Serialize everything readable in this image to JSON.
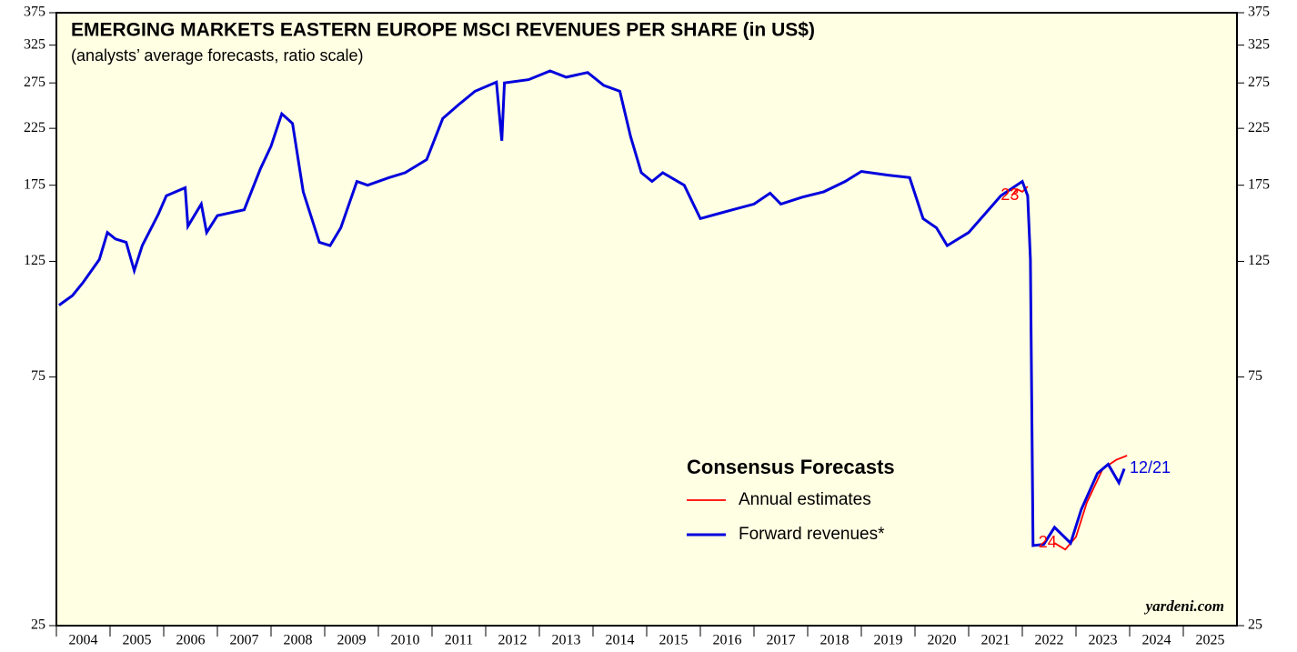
{
  "chart_data": {
    "type": "line",
    "title": "EMERGING MARKETS EASTERN EUROPE MSCI REVENUES PER SHARE (in US$)",
    "subtitle": "(analysts’ average forecasts, ratio scale)",
    "legend_title": "Consensus Forecasts",
    "log_scale": true,
    "ylim": [
      25,
      375
    ],
    "yticks": [
      25,
      75,
      125,
      175,
      225,
      275,
      325,
      375
    ],
    "xlim": [
      2004,
      2026
    ],
    "xticks": [
      2004,
      2005,
      2006,
      2007,
      2008,
      2009,
      2010,
      2011,
      2012,
      2013,
      2014,
      2015,
      2016,
      2017,
      2018,
      2019,
      2020,
      2021,
      2022,
      2023,
      2024,
      2025
    ],
    "series": [
      {
        "name": "Annual estimates",
        "color": "#ff0000",
        "x": [
          2021.8,
          2021.9,
          2022.0,
          2022.1,
          null,
          2022.6,
          2022.8,
          2023.0,
          2023.2,
          2023.5,
          2023.75,
          2023.95
        ],
        "values": [
          167,
          172,
          170,
          174,
          null,
          36,
          35,
          37,
          43,
          50,
          52,
          53
        ]
      },
      {
        "name": "Forward revenues*",
        "color": "#0000dd",
        "x": [
          2004.05,
          2004.3,
          2004.5,
          2004.8,
          2004.95,
          2005.1,
          2005.3,
          2005.45,
          2005.6,
          2005.9,
          2006.05,
          2006.4,
          2006.45,
          2006.7,
          2006.8,
          2007.0,
          2007.5,
          2007.8,
          2008.0,
          2008.2,
          2008.4,
          2008.6,
          2008.9,
          2009.1,
          2009.3,
          2009.6,
          2009.8,
          2010.2,
          2010.5,
          2010.9,
          2011.2,
          2011.5,
          2011.8,
          2012.2,
          2012.3,
          2012.35,
          2012.8,
          2013.2,
          2013.5,
          2013.9,
          2014.2,
          2014.5,
          2014.7,
          2014.9,
          2015.1,
          2015.3,
          2015.7,
          2016.0,
          2016.3,
          2016.6,
          2017.0,
          2017.3,
          2017.5,
          2017.9,
          2018.3,
          2018.7,
          2019.0,
          2019.5,
          2019.9,
          2020.15,
          2020.4,
          2020.6,
          2021.0,
          2021.3,
          2021.6,
          2022.0,
          2022.1,
          2022.15,
          2022.2,
          2022.4,
          2022.6,
          2022.9,
          2023.1,
          2023.4,
          2023.6,
          2023.8,
          2023.9
        ],
        "values": [
          103,
          107.5,
          114,
          126,
          142,
          138,
          136,
          120,
          134,
          154,
          167,
          173,
          146,
          161,
          142,
          153,
          157,
          188,
          208,
          240,
          230,
          170,
          136,
          134,
          145,
          178,
          175,
          181,
          185,
          196,
          235,
          250,
          265,
          276,
          213,
          275,
          279,
          290,
          282,
          288,
          272,
          265,
          217,
          185,
          178,
          185,
          175,
          151,
          154,
          157,
          161,
          169,
          161,
          166,
          170,
          178,
          186,
          183,
          181,
          151,
          145,
          134,
          142,
          154,
          167,
          178,
          167,
          126,
          35.6,
          35.8,
          38.6,
          36,
          41.8,
          49,
          51,
          47,
          50
        ]
      }
    ],
    "annotations": [
      {
        "text": "23",
        "x": 2021.6,
        "y": 167,
        "color": "#ff0000"
      },
      {
        "text": "24",
        "x": 2022.3,
        "y": 36,
        "color": "#ff0000"
      },
      {
        "text": "12/21",
        "x": 2024.0,
        "y": 50,
        "color": "#0000dd"
      }
    ],
    "source": "yardeni.com"
  }
}
